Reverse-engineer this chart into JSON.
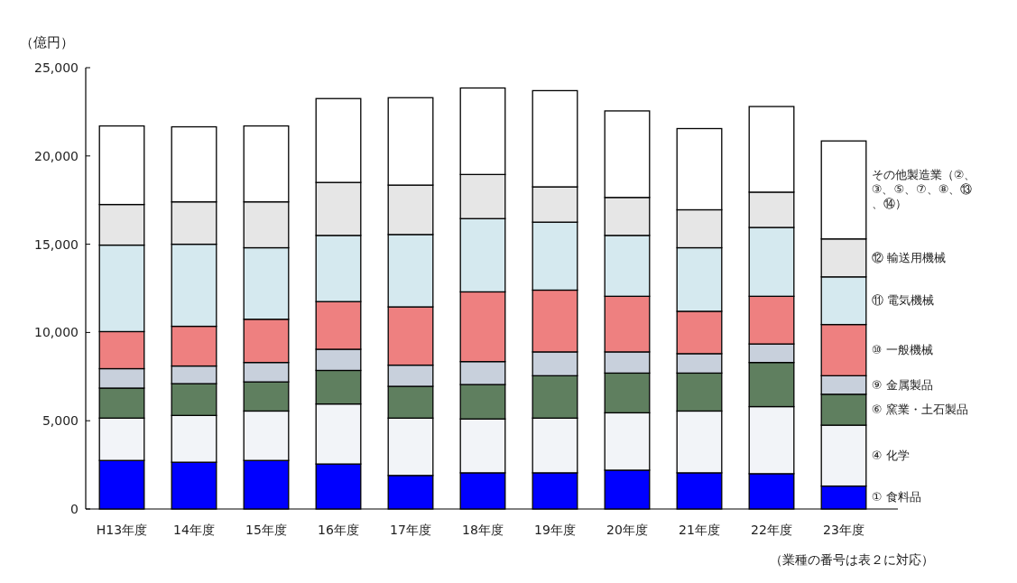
{
  "chart_data": {
    "type": "bar",
    "stacked": true,
    "ylabel": "（億円）",
    "annotations": [
      "（業種の番号は表２に対応）"
    ],
    "categories": [
      "H13年度",
      "14年度",
      "15年度",
      "16年度",
      "17年度",
      "18年度",
      "19年度",
      "20年度",
      "21年度",
      "22年度",
      "23年度"
    ],
    "ylim": [
      0,
      25000
    ],
    "yticks": [
      0,
      {
        "value": 5000,
        "label": "5,000"
      },
      {
        "value": 10000,
        "label": "10,000"
      },
      {
        "value": 15000,
        "label": "15,000"
      },
      {
        "value": 20000,
        "label": "20,000"
      },
      {
        "value": 25000,
        "label": "25,000"
      }
    ],
    "grid": false,
    "legend": false,
    "series": [
      {
        "name": "① 食料品",
        "color": "#0000ff",
        "values": [
          2750,
          2650,
          2750,
          2550,
          1900,
          2050,
          2050,
          2200,
          2050,
          2000,
          1300
        ]
      },
      {
        "name": "④ 化学",
        "color": "#f2f4f8",
        "values": [
          2400,
          2650,
          2800,
          3400,
          3250,
          3050,
          3100,
          3250,
          3500,
          3800,
          3450
        ]
      },
      {
        "name": "⑥ 窯業・土石製品",
        "color": "#5f7f5f",
        "values": [
          1700,
          1800,
          1650,
          1900,
          1800,
          1950,
          2400,
          2250,
          2150,
          2500,
          1750
        ]
      },
      {
        "name": "⑨ 金属製品",
        "color": "#c8d0dc",
        "values": [
          1100,
          1000,
          1100,
          1200,
          1200,
          1300,
          1350,
          1200,
          1100,
          1050,
          1050
        ]
      },
      {
        "name": "⑩ 一般機械",
        "color": "#ee8080",
        "values": [
          2100,
          2250,
          2450,
          2700,
          3300,
          3950,
          3500,
          3150,
          2400,
          2700,
          2900
        ]
      },
      {
        "name": "⑪ 電気機械",
        "color": "#d5e9ef",
        "values": [
          4900,
          4650,
          4050,
          3750,
          4100,
          4150,
          3850,
          3450,
          3600,
          3900,
          2700
        ]
      },
      {
        "name": "⑫ 輸送用機械",
        "color": "#e6e6e6",
        "values": [
          2300,
          2400,
          2600,
          3000,
          2800,
          2500,
          2000,
          2150,
          2150,
          2000,
          2150
        ]
      },
      {
        "name": "その他製造業（②、③、⑤、⑦、⑧、⑬、⑭）",
        "color": "#ffffff",
        "values": [
          4450,
          4250,
          4300,
          4750,
          4950,
          4900,
          5450,
          4900,
          4600,
          4850,
          5550
        ]
      }
    ]
  }
}
